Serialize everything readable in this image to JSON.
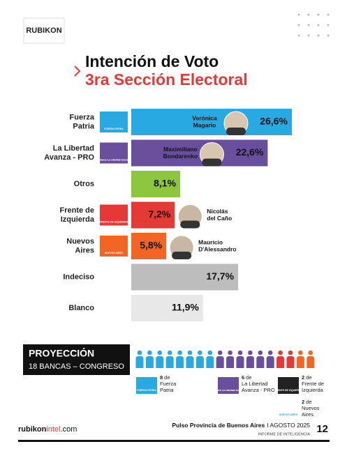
{
  "header": {
    "logo": "RUBIKON"
  },
  "chart_data": {
    "type": "bar",
    "orientation": "horizontal",
    "title": "Intención de Voto",
    "subtitle": "3ra Sección Electoral",
    "categories": [
      [
        "Fuerza",
        "Patria"
      ],
      [
        "La Libertad",
        "Avanza - PRO"
      ],
      [
        "Otros"
      ],
      [
        "Frente de",
        "Izquierda"
      ],
      [
        "Nuevos",
        "Aires"
      ],
      [
        "Indeciso"
      ],
      [
        "Blanco"
      ]
    ],
    "values": [
      26.6,
      22.6,
      8.1,
      7.2,
      5.8,
      17.7,
      11.9
    ],
    "value_labels": [
      "26,6%",
      "22,6%",
      "8,1%",
      "7,2%",
      "5,8%",
      "17,7%",
      "11,9%"
    ],
    "colors": [
      "#29a9e1",
      "#6a4e9e",
      "#8cc63f",
      "#e53935",
      "#f26522",
      "#bdbdbd",
      "#e8e8e8"
    ],
    "candidates": [
      [
        "Verónica",
        "Magario"
      ],
      [
        "Maximiliano",
        "Bondarenko"
      ],
      null,
      [
        "Nicolás",
        "del Caño"
      ],
      [
        "Mauricio",
        "D'Alessandro"
      ],
      null,
      null
    ],
    "logos": [
      "FUERZA PATRIA",
      "Alianza La Libertad Avanza",
      null,
      "FRENTE DE IZQUIERDA",
      "NUEVOS AIRES",
      null,
      null
    ]
  },
  "projection": {
    "title": "PROYECCIÓN",
    "subtitle": "18 BANCAS – CONGRESO",
    "seats": [
      {
        "count": 8,
        "label": [
          "de",
          "Fuerza",
          "Patria"
        ],
        "color": "#29a9e1"
      },
      {
        "count": 6,
        "label": [
          "de",
          "La Libertad",
          "Avanza - PRO"
        ],
        "color": "#6a4e9e"
      },
      {
        "count": 2,
        "label": [
          "de",
          "Frente de",
          "Izquierda"
        ],
        "color": "#e53935"
      },
      {
        "count": 2,
        "label": [
          "de",
          "Nuevos",
          "Aires"
        ],
        "color": "#f26522"
      }
    ]
  },
  "footer": {
    "site": [
      "rubikon",
      "intel",
      ".com"
    ],
    "report": "Pulso Provincia de Buenos Aires",
    "date": "I AGOSTO 2025",
    "subtitle": "INFORME DE INTELIGENCIA",
    "page": "12"
  }
}
